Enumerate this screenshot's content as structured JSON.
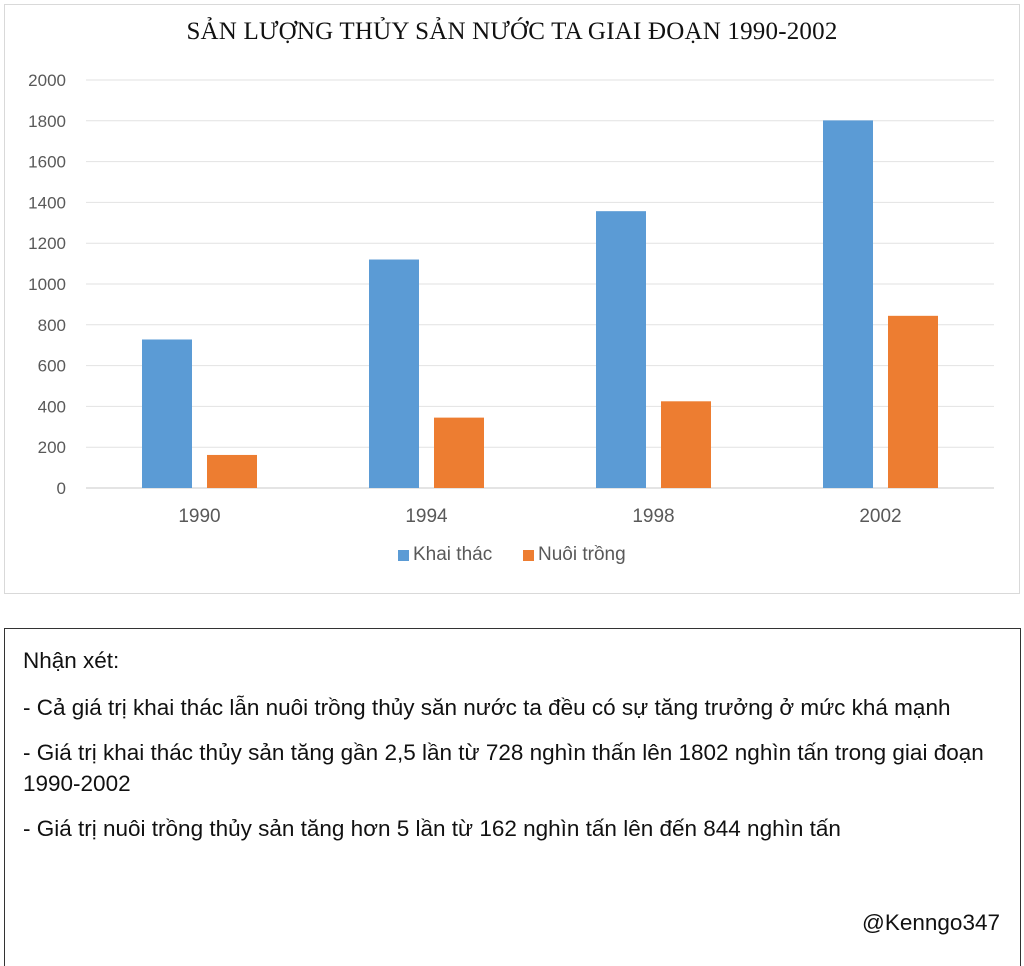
{
  "chart_data": {
    "type": "bar",
    "title": "SẢN LƯỢNG THỦY SẢN NƯỚC TA GIAI ĐOẠN 1990-2002",
    "categories": [
      "1990",
      "1994",
      "1998",
      "2002"
    ],
    "series": [
      {
        "name": "Khai thác",
        "color": "#5b9bd5",
        "values": [
          728,
          1120,
          1357,
          1802
        ]
      },
      {
        "name": "Nuôi trồng",
        "color": "#ed7d31",
        "values": [
          162,
          345,
          425,
          844
        ]
      }
    ],
    "ylim": [
      0,
      2000
    ],
    "yticks": [
      "0",
      "200",
      "400",
      "600",
      "800",
      "1000",
      "1200",
      "1400",
      "1600",
      "1800",
      "2000"
    ],
    "grid": true,
    "legend": "bottom-center"
  },
  "notes": {
    "heading": "Nhận xét:",
    "items": [
      "- Cả giá trị khai thác lẫn nuôi trồng thủy săn nước ta đều có sự tăng trưởng ở mức khá mạnh",
      "- Giá trị khai thác thủy sản tăng gần 2,5 lần từ 728 nghìn thấn lên 1802 nghìn tấn trong giai đoạn 1990-2002",
      "- Giá trị nuôi trồng thủy sản tăng hơn 5 lần từ 162 nghìn tấn lên đến 844 nghìn tấn"
    ],
    "signature": "@Kenngo347"
  }
}
